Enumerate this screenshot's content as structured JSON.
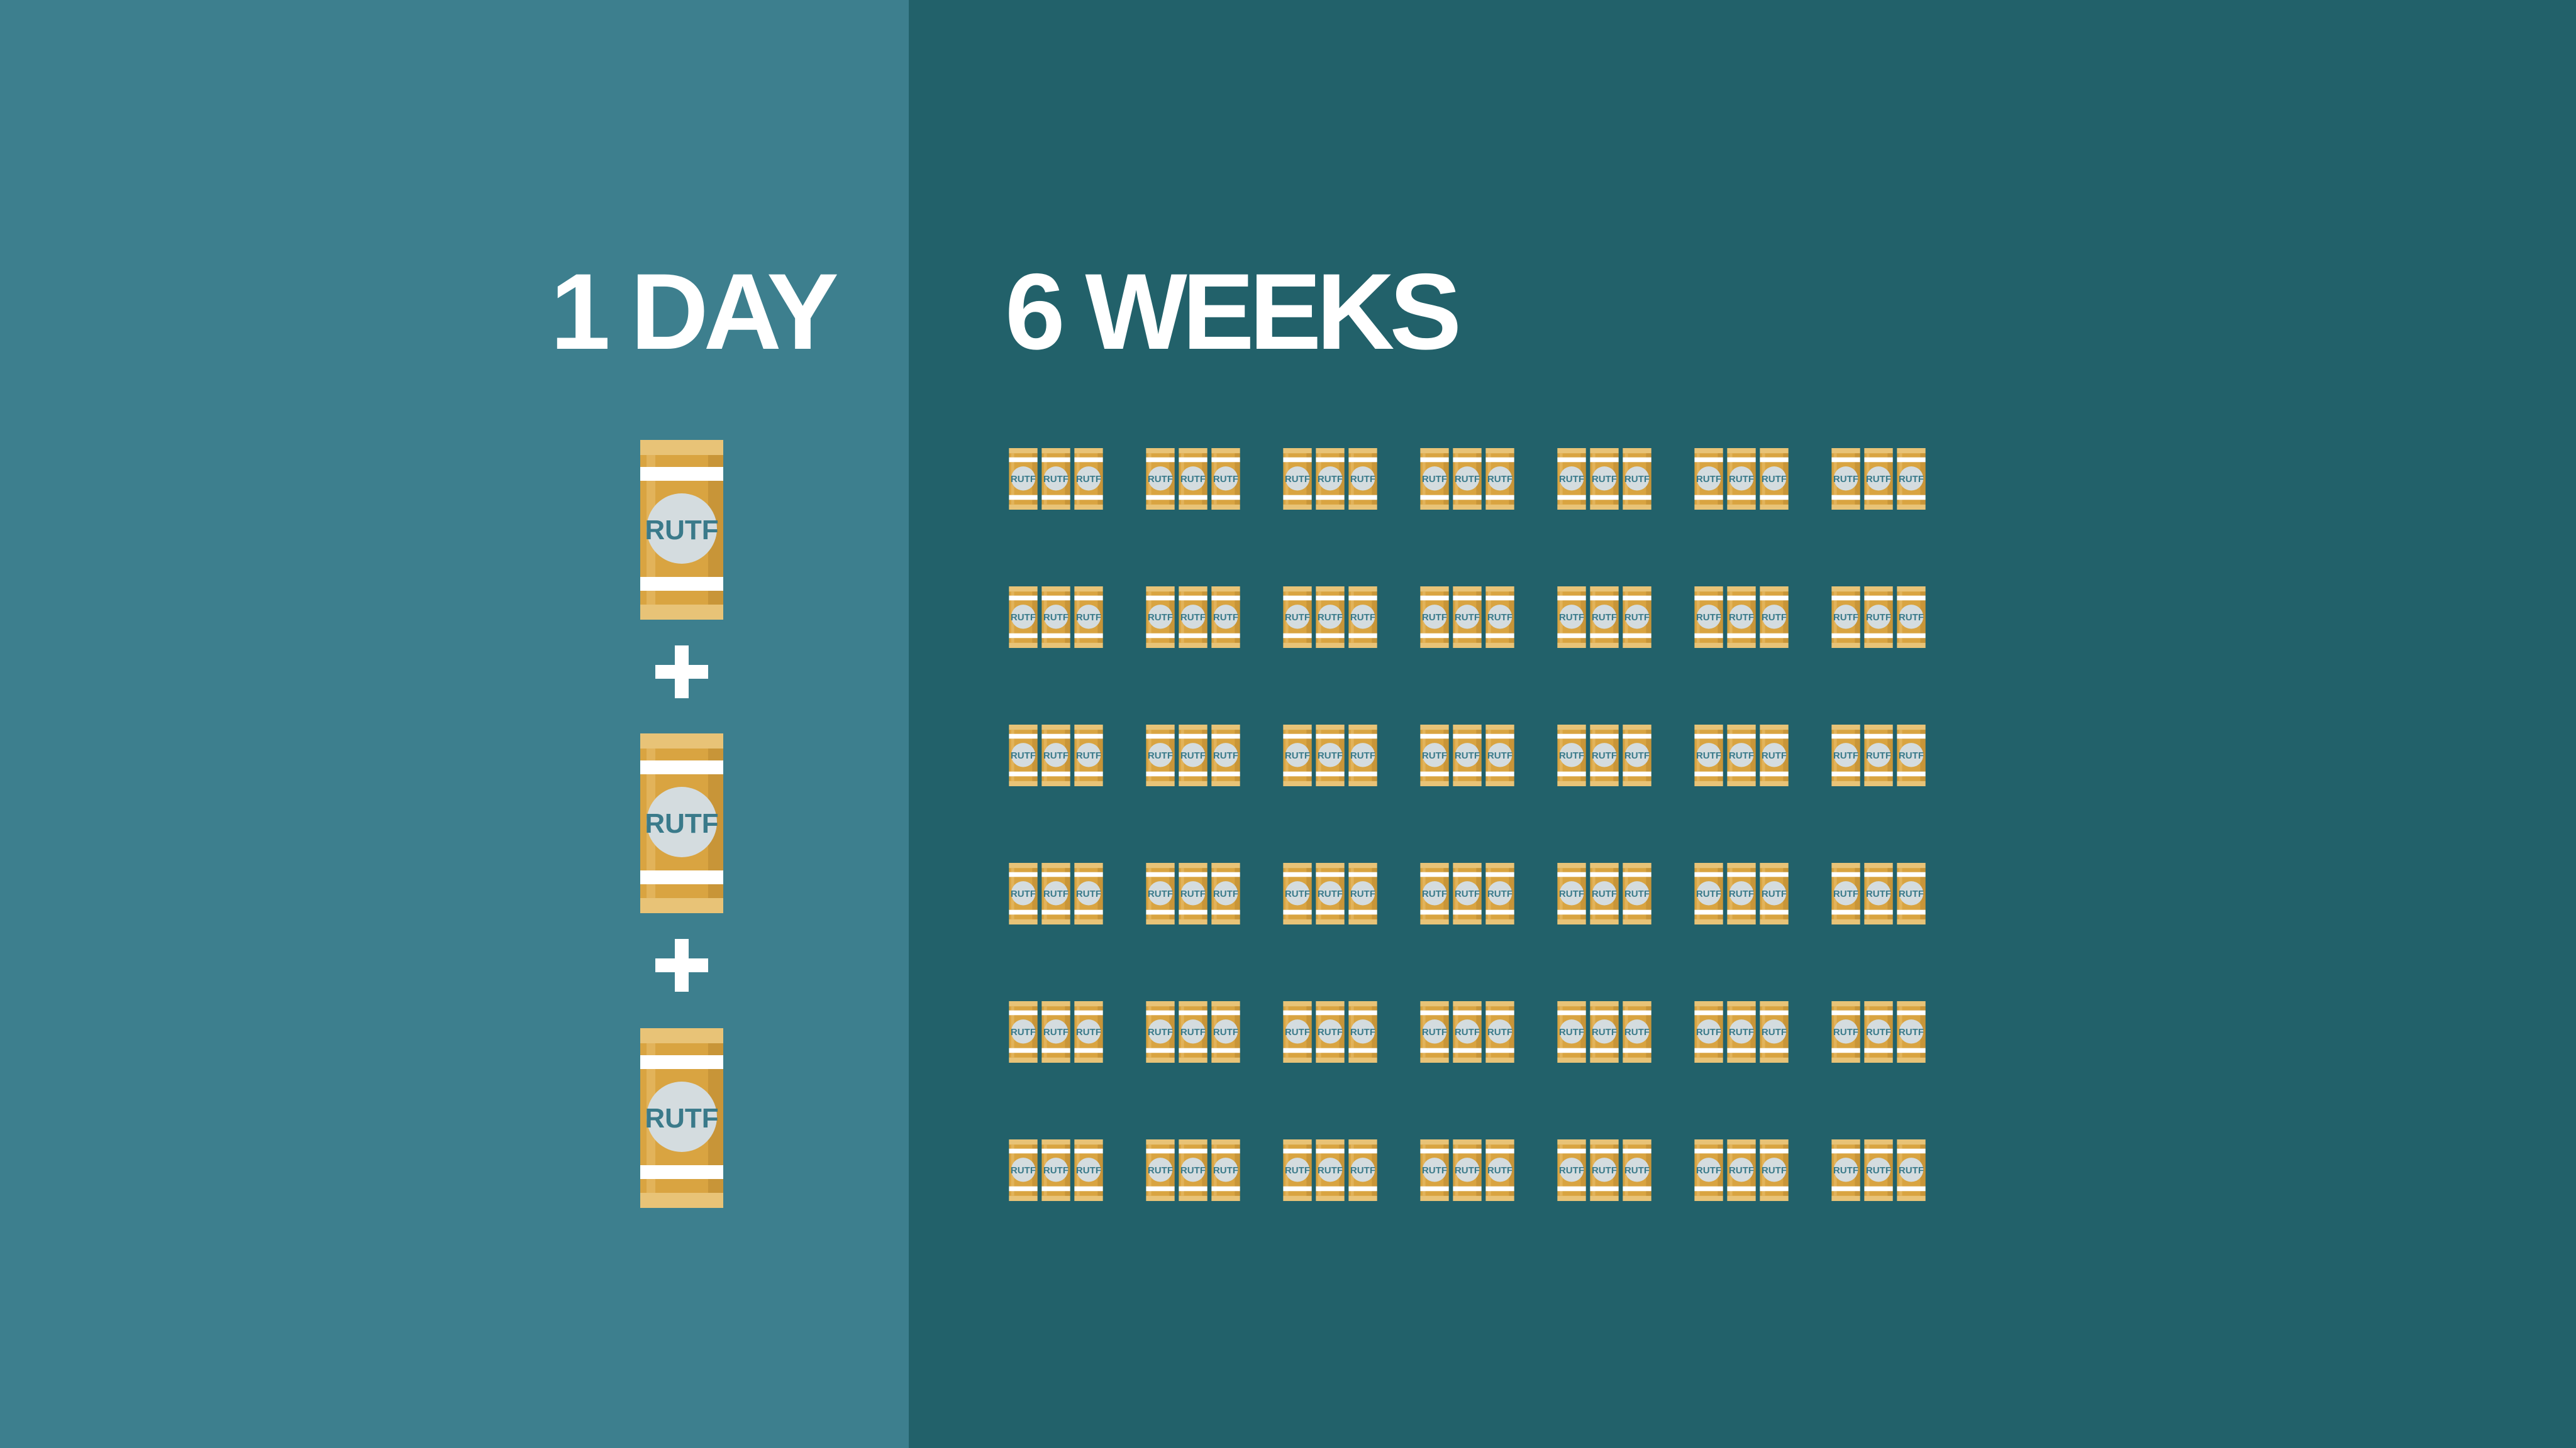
{
  "colors": {
    "left_bg": "#3d7f8e",
    "right_bg": "#22616a",
    "packet": "#d9a441",
    "packet_dark": "#c89538",
    "packet_light": "#e8c377",
    "label_circle": "#d4dcdf",
    "label_text": "#3a7a8a"
  },
  "packet_label": "RUTF",
  "day": {
    "title": "1 DAY",
    "packets": 3,
    "separator_icon": "plus-icon"
  },
  "weeks": {
    "title": "6 WEEKS",
    "rows": 6,
    "groups_per_row": 7,
    "packets_per_group": 3
  }
}
